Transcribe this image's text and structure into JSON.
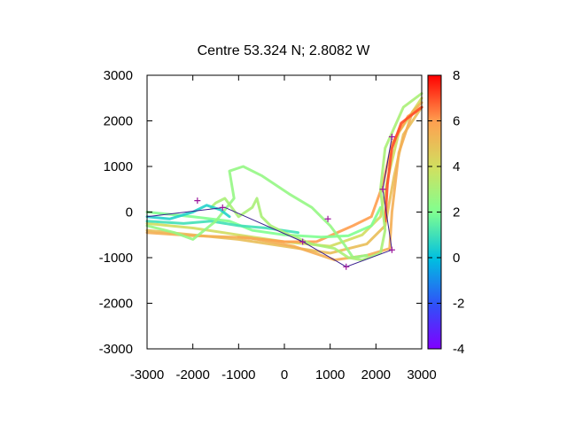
{
  "chart_data": {
    "type": "line",
    "title": "Centre 53.324 N; 2.8082  W",
    "xlabel": "",
    "ylabel": "",
    "xlim": [
      -3000,
      3000
    ],
    "ylim": [
      -3000,
      3000
    ],
    "x_ticks": [
      "-3000",
      "-2000",
      "-1000",
      "0",
      "1000",
      "2000",
      "3000"
    ],
    "y_ticks": [
      "3000",
      "2000",
      "1000",
      "0",
      "-1000",
      "-2000",
      "-3000"
    ],
    "grid": false,
    "legend": "none",
    "colorbar": {
      "min": -4,
      "max": 8,
      "ticks": [
        "8",
        "6",
        "4",
        "2",
        "0",
        "-2",
        "-4"
      ],
      "palette": "rainbow",
      "position": "right"
    },
    "route": {
      "color": "#3a1f8f",
      "marker_color": "#9b159b",
      "points": [
        {
          "x": -3000,
          "y": -100
        },
        {
          "x": -1300,
          "y": 100
        },
        {
          "x": 400,
          "y": -650
        },
        {
          "x": 1350,
          "y": -1200
        },
        {
          "x": 2350,
          "y": -830
        },
        {
          "x": 2150,
          "y": 500
        },
        {
          "x": 2350,
          "y": 1650
        }
      ]
    },
    "markers": [
      {
        "x": -1900,
        "y": 250
      },
      {
        "x": -1350,
        "y": 100
      },
      {
        "x": 400,
        "y": -650
      },
      {
        "x": 950,
        "y": -150
      },
      {
        "x": 1350,
        "y": -1200
      },
      {
        "x": 2350,
        "y": -830
      },
      {
        "x": 2150,
        "y": 500
      },
      {
        "x": 2350,
        "y": 1650
      }
    ],
    "tracks": [
      {
        "value": 4,
        "points": [
          [
            -3000,
            -250
          ],
          [
            -2000,
            -350
          ],
          [
            -1000,
            -500
          ],
          [
            0,
            -650
          ],
          [
            1000,
            -750
          ],
          [
            1700,
            -500
          ],
          [
            2100,
            -100
          ],
          [
            2250,
            700
          ],
          [
            2500,
            1750
          ],
          [
            3000,
            2500
          ]
        ]
      },
      {
        "value": 5,
        "points": [
          [
            -3000,
            -400
          ],
          [
            -2000,
            -500
          ],
          [
            -1000,
            -600
          ],
          [
            0,
            -750
          ],
          [
            1000,
            -900
          ],
          [
            1800,
            -700
          ],
          [
            2200,
            -300
          ],
          [
            2400,
            800
          ],
          [
            2600,
            1700
          ],
          [
            3000,
            2300
          ]
        ]
      },
      {
        "value": 6,
        "points": [
          [
            -1000,
            -550
          ],
          [
            0,
            -650
          ],
          [
            700,
            -650
          ],
          [
            1500,
            -300
          ],
          [
            1900,
            -100
          ],
          [
            2150,
            600
          ],
          [
            2350,
            1500
          ],
          [
            2700,
            2100
          ],
          [
            3000,
            2300
          ]
        ]
      },
      {
        "value": 5.5,
        "points": [
          [
            -3000,
            -450
          ],
          [
            -2000,
            -520
          ],
          [
            -800,
            -560
          ],
          [
            200,
            -750
          ],
          [
            1100,
            -1050
          ],
          [
            1800,
            -950
          ],
          [
            2300,
            -800
          ],
          [
            2350,
            0
          ],
          [
            2500,
            1300
          ],
          [
            2800,
            2200
          ],
          [
            3000,
            2400
          ]
        ]
      },
      {
        "value": 7,
        "points": [
          [
            2200,
            -200
          ],
          [
            2250,
            600
          ],
          [
            2350,
            1400
          ],
          [
            2550,
            1950
          ],
          [
            3000,
            2300
          ]
        ]
      },
      {
        "value": 2,
        "points": [
          [
            -3000,
            0
          ],
          [
            -2000,
            -100
          ],
          [
            -1200,
            -200
          ],
          [
            -700,
            -400
          ],
          [
            0,
            -500
          ],
          [
            800,
            -550
          ],
          [
            1400,
            -520
          ],
          [
            1900,
            -300
          ],
          [
            2100,
            100
          ]
        ]
      },
      {
        "value": 1,
        "points": [
          [
            -3000,
            -200
          ],
          [
            -2200,
            -250
          ],
          [
            -1600,
            -200
          ],
          [
            -1000,
            -300
          ],
          [
            -400,
            -350
          ],
          [
            300,
            -450
          ]
        ]
      },
      {
        "value": 2.5,
        "points": [
          [
            -3000,
            -300
          ],
          [
            -2400,
            -450
          ],
          [
            -2000,
            -600
          ],
          [
            -1500,
            -200
          ],
          [
            -1100,
            300
          ],
          [
            -1200,
            900
          ],
          [
            -900,
            1000
          ],
          [
            -500,
            800
          ],
          [
            100,
            400
          ],
          [
            600,
            100
          ],
          [
            1000,
            -300
          ],
          [
            1300,
            -700
          ],
          [
            1500,
            -1000
          ],
          [
            1800,
            -950
          ]
        ]
      },
      {
        "value": 3,
        "points": [
          [
            -1600,
            100
          ],
          [
            -1500,
            200
          ],
          [
            -1300,
            300
          ],
          [
            -1000,
            -100
          ],
          [
            -700,
            100
          ],
          [
            -600,
            300
          ],
          [
            -500,
            -100
          ],
          [
            -300,
            -300
          ],
          [
            0,
            -450
          ],
          [
            600,
            -700
          ],
          [
            1100,
            -800
          ],
          [
            1400,
            -1000
          ],
          [
            1700,
            -1050
          ],
          [
            2100,
            -900
          ],
          [
            2200,
            -400
          ],
          [
            2100,
            500
          ],
          [
            2200,
            1400
          ],
          [
            2600,
            2300
          ],
          [
            3000,
            2600
          ]
        ]
      },
      {
        "value": 0.5,
        "points": [
          [
            -3000,
            -100
          ],
          [
            -2500,
            -150
          ],
          [
            -2000,
            0
          ],
          [
            -1700,
            150
          ],
          [
            -1400,
            50
          ],
          [
            -1200,
            -100
          ]
        ]
      }
    ]
  }
}
